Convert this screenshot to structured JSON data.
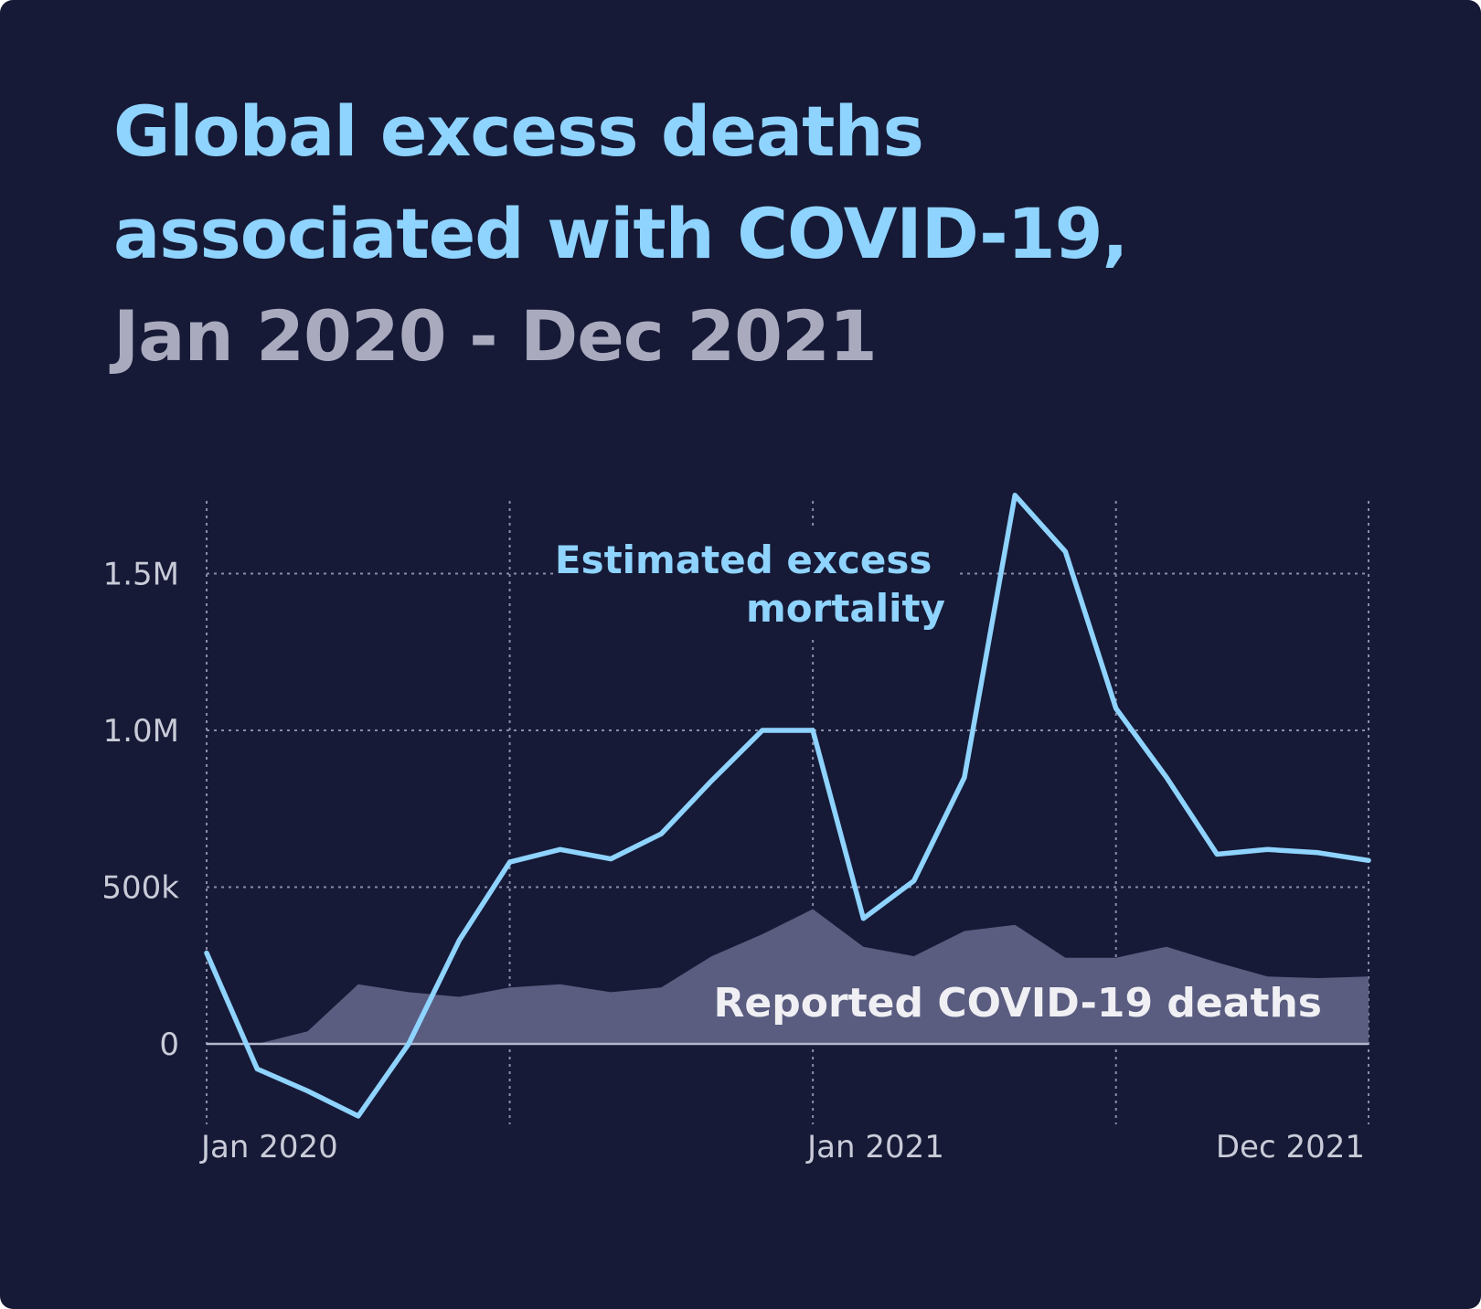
{
  "title": {
    "line1": "Global excess deaths",
    "line2": "associated with COVID-19,",
    "line3": "Jan 2020 - Dec 2021"
  },
  "colors": {
    "background": "#161a36",
    "title_accent": "#8fd3ff",
    "title_muted": "#aaaabf",
    "excess_line": "#8fd3ff",
    "reported_area": "#5a5c80",
    "grid": "#8a8ca8",
    "axis_text": "#c9cbd8"
  },
  "chart_data": {
    "type": "line",
    "title": "Global excess deaths associated with COVID-19, Jan 2020 - Dec 2021",
    "xlabel": "",
    "ylabel": "",
    "x_months": 24,
    "ylim": [
      -250000,
      1780000
    ],
    "yticks": [
      {
        "value": 0,
        "label": "0"
      },
      {
        "value": 500000,
        "label": "500k"
      },
      {
        "value": 1000000,
        "label": "1.0M"
      },
      {
        "value": 1500000,
        "label": "1.5M"
      }
    ],
    "xticks": [
      {
        "month": 0,
        "label": "Jan 2020"
      },
      {
        "month": 12,
        "label": "Jan 2021"
      },
      {
        "month": 23,
        "label": "Dec 2021"
      }
    ],
    "grid_months": [
      0,
      6,
      12,
      18,
      23
    ],
    "grid": true,
    "series": [
      {
        "name": "Estimated excess mortality",
        "label_lines": [
          "Estimated excess",
          "mortality"
        ],
        "kind": "line",
        "values": [
          290000,
          -80000,
          -150000,
          -230000,
          0,
          330000,
          580000,
          620000,
          590000,
          670000,
          840000,
          1000000,
          1000000,
          400000,
          520000,
          850000,
          1750000,
          1570000,
          1070000,
          850000,
          605000,
          620000,
          610000,
          585000
        ]
      },
      {
        "name": "Reported COVID-19 deaths",
        "label_lines": [
          "Reported COVID-19 deaths"
        ],
        "kind": "area",
        "values": [
          0,
          0,
          40000,
          190000,
          165000,
          150000,
          180000,
          190000,
          165000,
          180000,
          280000,
          350000,
          430000,
          310000,
          280000,
          360000,
          380000,
          275000,
          275000,
          310000,
          260000,
          215000,
          210000,
          215000
        ]
      }
    ]
  }
}
